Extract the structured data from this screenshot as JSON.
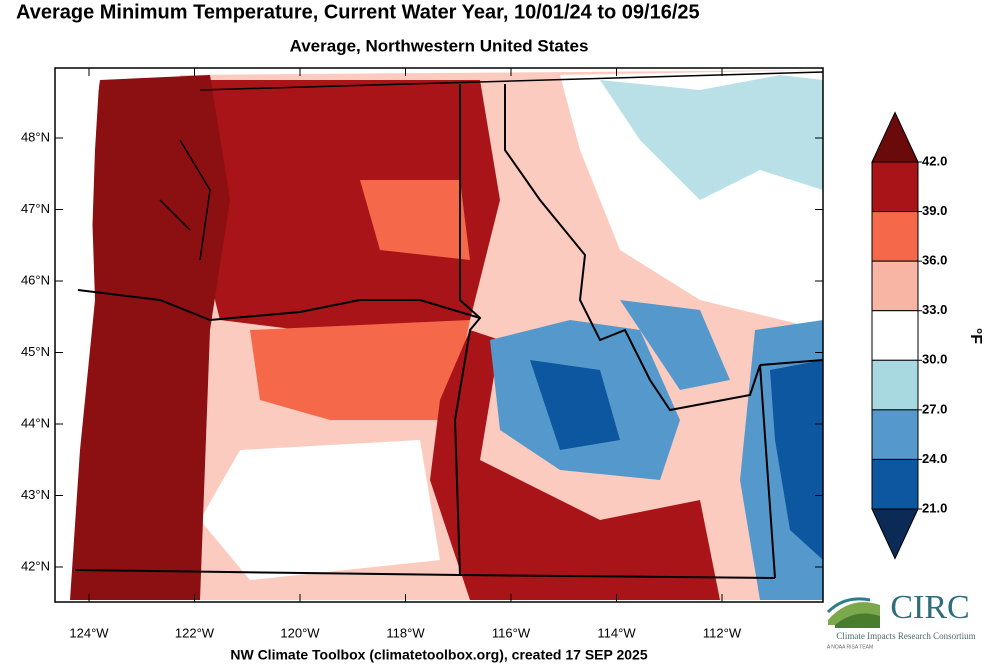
{
  "map": {
    "title": "Average Minimum Temperature, Current Water Year, 10/01/24 to 09/16/25",
    "subtitle": "Average, Northwestern United States",
    "lat_ticks": [
      {
        "value": 42,
        "label": "42°N"
      },
      {
        "value": 43,
        "label": "43°N"
      },
      {
        "value": 44,
        "label": "44°N"
      },
      {
        "value": 45,
        "label": "45°N"
      },
      {
        "value": 46,
        "label": "46°N"
      },
      {
        "value": 47,
        "label": "47°N"
      },
      {
        "value": 48,
        "label": "48°N"
      }
    ],
    "lon_ticks": [
      {
        "value": -124,
        "label": "124°W"
      },
      {
        "value": -122,
        "label": "122°W"
      },
      {
        "value": -120,
        "label": "120°W"
      },
      {
        "value": -118,
        "label": "118°W"
      },
      {
        "value": -116,
        "label": "116°W"
      },
      {
        "value": -114,
        "label": "114°W"
      },
      {
        "value": -112,
        "label": "112°W"
      }
    ],
    "colorbar": {
      "unit": "°F",
      "ticks": [
        {
          "value": 42,
          "label": "42.0"
        },
        {
          "value": 39,
          "label": "39.0"
        },
        {
          "value": 36,
          "label": "36.0"
        },
        {
          "value": 33,
          "label": "33.0"
        },
        {
          "value": 30,
          "label": "30.0"
        },
        {
          "value": 27,
          "label": "27.0"
        },
        {
          "value": 24,
          "label": "24.0"
        },
        {
          "value": 21,
          "label": "21.0"
        }
      ],
      "over_color": "#6b0a0a",
      "bin_colors": [
        "#a81418",
        "#f5694a",
        "#f9b5a4",
        "#ffffff",
        "#a8d8e0",
        "#5599cc",
        "#0d57a0"
      ],
      "under_color": "#0b2a55"
    }
  },
  "footer": "NW Climate Toolbox (climatetoolbox.org), created 17 SEP 2025",
  "logo": {
    "name": "CIRC",
    "full_name": "Climate Impacts Research Consortium",
    "tagline": "A NOAA RISA TEAM"
  }
}
